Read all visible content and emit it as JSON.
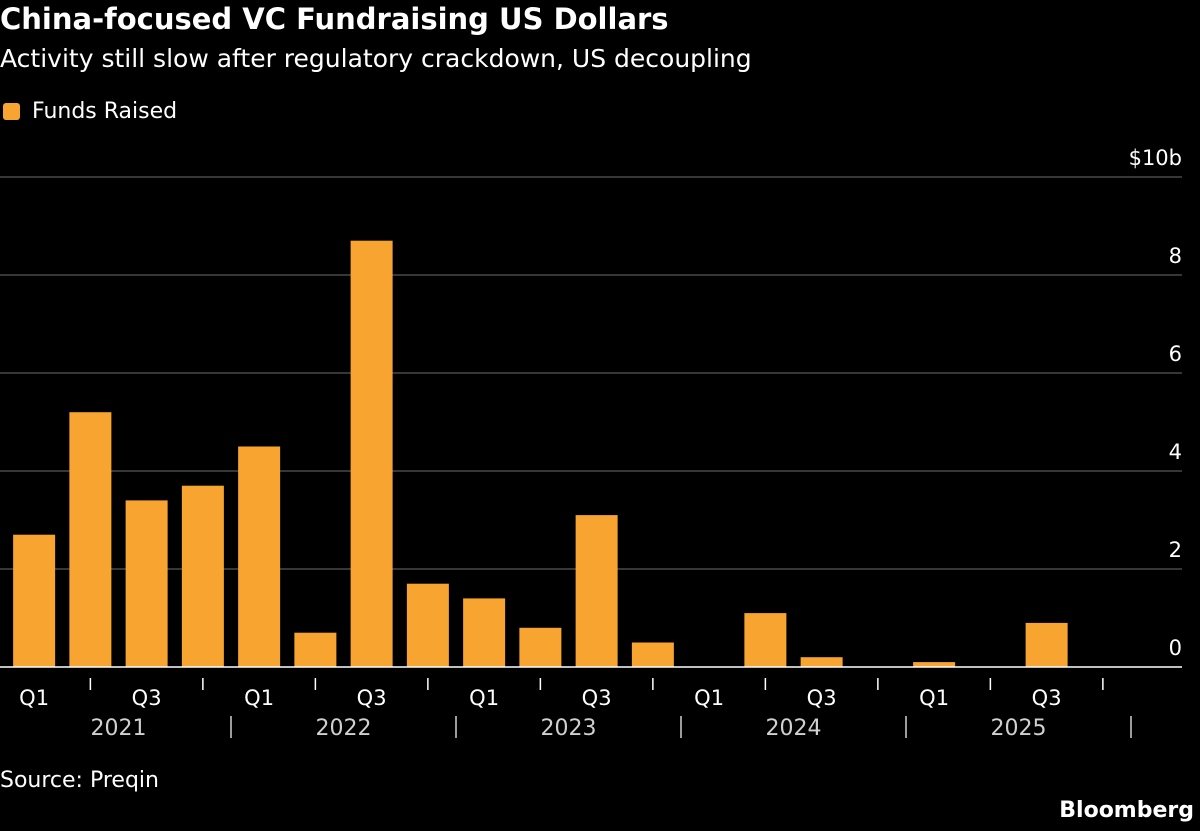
{
  "header": {
    "title": "China-focused VC Fundraising US Dollars",
    "subtitle": "Activity still slow after regulatory crackdown, US decoupling"
  },
  "legend": {
    "label": "Funds Raised"
  },
  "footer": {
    "source": "Source: Preqin",
    "brand": "Bloomberg"
  },
  "colors": {
    "bar": "#f7a530",
    "grid": "#6e6e6e",
    "tick": "#ffffff",
    "year_label": "#d0d0d0"
  },
  "chart_data": {
    "type": "bar",
    "title": "China-focused VC Fundraising US Dollars",
    "subtitle": "Activity still slow after regulatory crackdown, US decoupling",
    "xlabel": "",
    "ylabel": "",
    "unit": "$b",
    "ylim": [
      0,
      10
    ],
    "y_ticks": [
      0,
      2,
      4,
      6,
      8,
      10
    ],
    "y_tick_labels": [
      "0",
      "2",
      "4",
      "6",
      "8",
      "$10b"
    ],
    "grid": true,
    "legend_position": "top-left",
    "categories": [
      "2021 Q1",
      "2021 Q2",
      "2021 Q3",
      "2021 Q4",
      "2022 Q1",
      "2022 Q2",
      "2022 Q3",
      "2022 Q4",
      "2023 Q1",
      "2023 Q2",
      "2023 Q3",
      "2023 Q4",
      "2024 Q1",
      "2024 Q2",
      "2024 Q3",
      "2024 Q4",
      "2025 Q1",
      "2025 Q2",
      "2025 Q3",
      "2025 Q4"
    ],
    "quarter_labels": [
      "Q1",
      "",
      "Q3",
      "",
      "Q1",
      "",
      "Q3",
      "",
      "Q1",
      "",
      "Q3",
      "",
      "Q1",
      "",
      "Q3",
      "",
      "Q1",
      "",
      "Q3",
      ""
    ],
    "years": [
      "2021",
      "2022",
      "2023",
      "2024",
      "2025"
    ],
    "series": [
      {
        "name": "Funds Raised",
        "values": [
          2.7,
          5.2,
          3.4,
          3.7,
          4.5,
          0.7,
          8.7,
          1.7,
          1.4,
          0.8,
          3.1,
          0.5,
          0.0,
          1.1,
          0.2,
          0.0,
          0.1,
          0.0,
          0.9,
          null
        ]
      }
    ]
  }
}
